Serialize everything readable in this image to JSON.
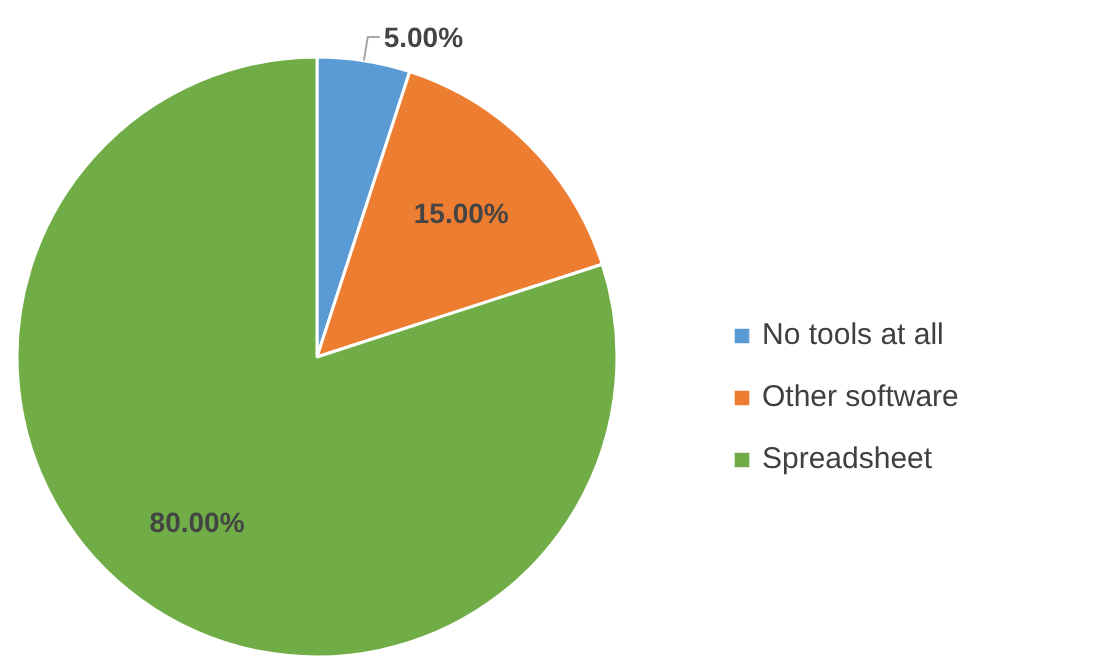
{
  "chart_data": {
    "type": "pie",
    "categories": [
      "No tools at all",
      "Other software",
      "Spreadsheet"
    ],
    "values": [
      5,
      15,
      80
    ],
    "colors": [
      "#5b9bd5",
      "#ed7d31",
      "#70ad47"
    ],
    "value_labels": [
      "5.00%",
      "15.00%",
      "80.00%"
    ],
    "legend": "right"
  }
}
